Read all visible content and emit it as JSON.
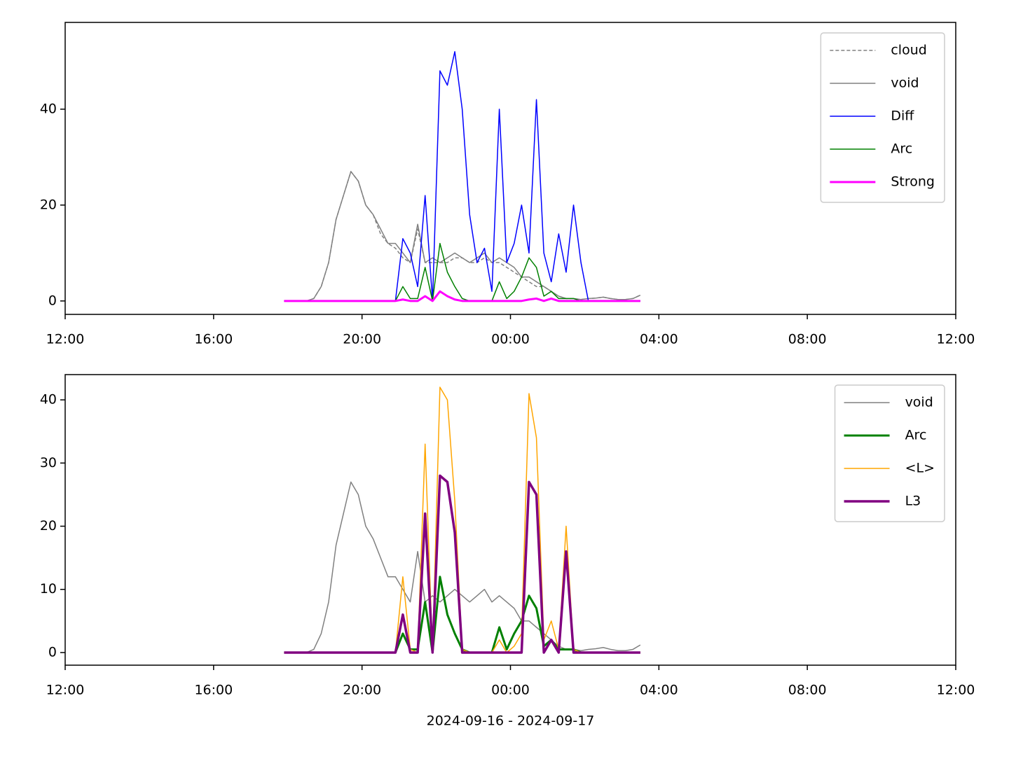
{
  "chart_data": [
    {
      "type": "line",
      "x": [
        5.9,
        6.1,
        6.3,
        6.5,
        6.7,
        6.9,
        7.1,
        7.3,
        7.5,
        7.7,
        7.9,
        8.1,
        8.3,
        8.5,
        8.7,
        8.9,
        9.1,
        9.3,
        9.5,
        9.7,
        9.9,
        10.1,
        10.3,
        10.5,
        10.7,
        10.9,
        11.1,
        11.3,
        11.5,
        11.7,
        11.9,
        12.1,
        12.3,
        12.5,
        12.7,
        12.9,
        13.1,
        13.3,
        13.5,
        13.7,
        13.9,
        14.1,
        14.3,
        14.5,
        14.7,
        14.9,
        15.1,
        15.3,
        15.5
      ],
      "xlim": [
        0,
        24
      ],
      "xticks": [
        {
          "value": 0,
          "label": "12:00"
        },
        {
          "value": 4,
          "label": "16:00"
        },
        {
          "value": 8,
          "label": "20:00"
        },
        {
          "value": 12,
          "label": "00:00"
        },
        {
          "value": 16,
          "label": "04:00"
        },
        {
          "value": 20,
          "label": "08:00"
        },
        {
          "value": 24,
          "label": "12:00"
        }
      ],
      "ylim": [
        -2.8,
        58.1
      ],
      "yticks": [
        0,
        20,
        40
      ],
      "legend": "upper right",
      "series": [
        {
          "name": "cloud",
          "color": "#808080",
          "linestyle": "dashed",
          "linewidth": 1.5,
          "values": [
            0,
            0,
            0,
            0,
            0.5,
            3,
            8,
            17,
            22,
            27,
            25,
            20,
            18,
            14,
            12,
            11,
            9,
            8,
            15,
            8,
            8,
            8,
            8,
            9,
            9,
            8,
            8,
            9,
            8,
            8,
            7,
            6,
            5,
            4,
            3,
            3,
            2,
            1,
            0.5,
            0.5,
            0.3,
            0.5,
            0.6,
            0.8,
            0.5,
            0.3,
            0.3,
            0.5,
            1.2
          ]
        },
        {
          "name": "void",
          "color": "#808080",
          "linestyle": "solid",
          "linewidth": 1.5,
          "values": [
            0,
            0,
            0,
            0,
            0.5,
            3,
            8,
            17,
            22,
            27,
            25,
            20,
            18,
            15,
            12,
            12,
            10,
            8,
            16,
            8,
            9,
            8,
            9,
            10,
            9,
            8,
            9,
            10,
            8,
            9,
            8,
            7,
            5,
            5,
            4,
            3,
            2,
            1,
            0.5,
            0.5,
            0.3,
            0.5,
            0.6,
            0.8,
            0.5,
            0.3,
            0.3,
            0.5,
            1.2
          ]
        },
        {
          "name": "Diff",
          "color": "#0000ff",
          "linestyle": "solid",
          "linewidth": 1.5,
          "values": [
            0,
            0,
            0,
            0,
            0,
            0,
            0,
            0,
            0,
            0,
            0,
            0,
            0,
            0,
            0,
            0,
            13,
            10,
            3,
            22,
            0,
            48,
            45,
            52,
            40,
            18,
            8,
            11,
            2,
            40,
            8,
            12,
            20,
            10,
            42,
            10,
            4,
            14,
            6,
            20,
            8,
            0,
            0,
            0,
            0,
            0,
            0,
            0,
            0
          ]
        },
        {
          "name": "Arc",
          "color": "#008000",
          "linestyle": "solid",
          "linewidth": 1.5,
          "values": [
            0,
            0,
            0,
            0,
            0,
            0,
            0,
            0,
            0,
            0,
            0,
            0,
            0,
            0,
            0,
            0,
            3,
            0.5,
            0.5,
            7,
            0,
            12,
            6,
            3,
            0.5,
            0,
            0,
            0,
            0,
            4,
            0.5,
            2,
            5,
            9,
            7,
            1,
            2,
            0.5,
            0.5,
            0.5,
            0,
            0,
            0,
            0,
            0,
            0,
            0,
            0,
            0
          ]
        },
        {
          "name": "Strong",
          "color": "#ff00ff",
          "linestyle": "solid",
          "linewidth": 3,
          "values": [
            0,
            0,
            0,
            0,
            0,
            0,
            0,
            0,
            0,
            0,
            0,
            0,
            0,
            0,
            0,
            0,
            0.3,
            0,
            0,
            1,
            0,
            2,
            1,
            0.3,
            0,
            0,
            0,
            0,
            0,
            0,
            0,
            0,
            0,
            0.3,
            0.5,
            0,
            0.5,
            0,
            0,
            0,
            0,
            0,
            0,
            0,
            0,
            0,
            0,
            0,
            0
          ]
        }
      ]
    },
    {
      "type": "line",
      "x": [
        5.9,
        6.1,
        6.3,
        6.5,
        6.7,
        6.9,
        7.1,
        7.3,
        7.5,
        7.7,
        7.9,
        8.1,
        8.3,
        8.5,
        8.7,
        8.9,
        9.1,
        9.3,
        9.5,
        9.7,
        9.9,
        10.1,
        10.3,
        10.5,
        10.7,
        10.9,
        11.1,
        11.3,
        11.5,
        11.7,
        11.9,
        12.1,
        12.3,
        12.5,
        12.7,
        12.9,
        13.1,
        13.3,
        13.5,
        13.7,
        13.9,
        14.1,
        14.3,
        14.5,
        14.7,
        14.9,
        15.1,
        15.3,
        15.5
      ],
      "xlim": [
        0,
        24
      ],
      "xticks": [
        {
          "value": 0,
          "label": "12:00"
        },
        {
          "value": 4,
          "label": "16:00"
        },
        {
          "value": 8,
          "label": "20:00"
        },
        {
          "value": 12,
          "label": "00:00"
        },
        {
          "value": 16,
          "label": "04:00"
        },
        {
          "value": 20,
          "label": "08:00"
        },
        {
          "value": 24,
          "label": "12:00"
        }
      ],
      "xlabel": "2024-09-16 - 2024-09-17",
      "ylim": [
        -2,
        44
      ],
      "yticks": [
        0,
        10,
        20,
        30,
        40
      ],
      "legend": "upper right",
      "series": [
        {
          "name": "void",
          "color": "#808080",
          "linestyle": "solid",
          "linewidth": 1.5,
          "values": [
            0,
            0,
            0,
            0,
            0.5,
            3,
            8,
            17,
            22,
            27,
            25,
            20,
            18,
            15,
            12,
            12,
            10,
            8,
            16,
            8,
            9,
            8,
            9,
            10,
            9,
            8,
            9,
            10,
            8,
            9,
            8,
            7,
            5,
            5,
            4,
            3,
            2,
            1,
            0.5,
            0.5,
            0.3,
            0.5,
            0.6,
            0.8,
            0.5,
            0.3,
            0.3,
            0.5,
            1.2
          ]
        },
        {
          "name": "Arc",
          "color": "#008000",
          "linestyle": "solid",
          "linewidth": 3,
          "values": [
            0,
            0,
            0,
            0,
            0,
            0,
            0,
            0,
            0,
            0,
            0,
            0,
            0,
            0,
            0,
            0,
            3,
            0.5,
            0.5,
            8,
            0,
            12,
            6,
            3,
            0.5,
            0,
            0,
            0,
            0,
            4,
            0.5,
            3,
            5,
            9,
            7,
            1,
            2,
            0.5,
            0.5,
            0.5,
            0,
            0,
            0,
            0,
            0,
            0,
            0,
            0,
            0
          ]
        },
        {
          "name": "<L>",
          "color": "#ffa500",
          "linestyle": "solid",
          "linewidth": 1.5,
          "values": [
            0,
            0,
            0,
            0,
            0,
            0,
            0,
            0,
            0,
            0,
            0,
            0,
            0,
            0,
            0,
            0,
            12,
            0.5,
            0,
            33,
            0,
            42,
            40,
            24,
            0.5,
            0,
            0,
            0,
            0,
            2,
            0,
            1,
            3,
            41,
            34,
            2,
            5,
            0.5,
            20,
            0.5,
            0,
            0,
            0,
            0,
            0,
            0,
            0,
            0,
            0
          ]
        },
        {
          "name": "L3",
          "color": "#800080",
          "linestyle": "solid",
          "linewidth": 3.5,
          "values": [
            0,
            0,
            0,
            0,
            0,
            0,
            0,
            0,
            0,
            0,
            0,
            0,
            0,
            0,
            0,
            0,
            6,
            0,
            0,
            22,
            0,
            28,
            27,
            19,
            0,
            0,
            0,
            0,
            0,
            0,
            0,
            0,
            0,
            27,
            25,
            0,
            2,
            0,
            16,
            0,
            0,
            0,
            0,
            0,
            0,
            0,
            0,
            0,
            0
          ]
        }
      ]
    }
  ]
}
